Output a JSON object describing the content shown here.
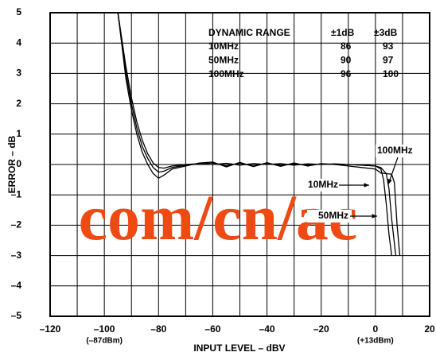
{
  "chart_data": {
    "type": "line",
    "xlabel": "INPUT LEVEL – dBV",
    "ylabel": "ERROR – dB",
    "xlim": [
      -120,
      20
    ],
    "ylim": [
      -5,
      5
    ],
    "xticks": [
      {
        "value": -120,
        "label": "–120"
      },
      {
        "value": -100,
        "label": "–100"
      },
      {
        "value": -80,
        "label": "–80"
      },
      {
        "value": -60,
        "label": "–60"
      },
      {
        "value": -40,
        "label": "–40"
      },
      {
        "value": -20,
        "label": "–20"
      },
      0,
      20
    ],
    "xtick_sublabels": [
      {
        "value": -100,
        "label": "(–87dBm)"
      },
      {
        "value": 0,
        "label": "(+13dBm)"
      }
    ],
    "xgrid": [
      -110,
      -90,
      -70,
      -50,
      -30,
      -10,
      10
    ],
    "yticks": [
      5,
      4,
      3,
      2,
      1,
      0,
      {
        "value": -1,
        "label": "–1"
      },
      {
        "value": -2,
        "label": "–2"
      },
      {
        "value": -3,
        "label": "–3"
      },
      {
        "value": -4,
        "label": "–4"
      },
      {
        "value": -5,
        "label": "–5"
      }
    ],
    "grid": true,
    "series": [
      {
        "name": "10MHz",
        "color": "#000000",
        "x": [
          -95,
          -92,
          -90,
          -88,
          -86,
          -84,
          -82,
          -80,
          -78,
          -75,
          -70,
          -65,
          -60,
          -55,
          -50,
          -45,
          -40,
          -35,
          -30,
          -25,
          -20,
          -15,
          -10,
          -5,
          0,
          2,
          3,
          4,
          5,
          6
        ],
        "values": [
          5,
          3.2,
          2.2,
          1.4,
          0.8,
          0.35,
          0.05,
          -0.1,
          -0.12,
          -0.05,
          0,
          0.03,
          0,
          0.04,
          -0.02,
          0.03,
          0,
          0.03,
          -0.02,
          0.02,
          0,
          0.02,
          0,
          -0.02,
          -0.05,
          -0.15,
          -0.5,
          -1.3,
          -2.3,
          -3.0
        ]
      },
      {
        "name": "50MHz",
        "color": "#000000",
        "x": [
          -95,
          -92,
          -90,
          -88,
          -86,
          -84,
          -82,
          -80,
          -78,
          -75,
          -70,
          -65,
          -60,
          -55,
          -50,
          -45,
          -40,
          -35,
          -30,
          -25,
          -20,
          -15,
          -10,
          -5,
          0,
          2,
          4,
          5,
          6,
          7,
          7.5
        ],
        "values": [
          5,
          3.0,
          2.0,
          1.2,
          0.6,
          0.2,
          -0.1,
          -0.25,
          -0.22,
          -0.1,
          -0.02,
          0.02,
          0.05,
          -0.05,
          0.05,
          -0.05,
          0.04,
          -0.04,
          0.03,
          -0.03,
          0.02,
          0,
          0,
          -0.02,
          -0.05,
          -0.1,
          -0.3,
          -0.8,
          -1.8,
          -2.6,
          -3.0
        ]
      },
      {
        "name": "100MHz",
        "color": "#000000",
        "x": [
          -95,
          -92,
          -90,
          -88,
          -86,
          -84,
          -82,
          -80,
          -78,
          -75,
          -70,
          -65,
          -60,
          -55,
          -50,
          -45,
          -40,
          -35,
          -30,
          -25,
          -20,
          -15,
          -10,
          -5,
          0,
          2,
          4,
          6,
          7,
          8,
          9
        ],
        "values": [
          5,
          2.8,
          1.8,
          1.0,
          0.4,
          0.0,
          -0.3,
          -0.45,
          -0.35,
          -0.15,
          -0.05,
          0.05,
          0.08,
          -0.08,
          0.07,
          -0.07,
          0.06,
          -0.06,
          0.05,
          -0.05,
          0.03,
          0,
          -0.05,
          -0.1,
          -0.15,
          -0.28,
          -0.3,
          -0.32,
          -0.6,
          -2.0,
          -3.0
        ]
      }
    ],
    "annotations": [
      {
        "text": "100MHz"
      },
      {
        "text": "10MHz"
      },
      {
        "text": "50MHz"
      }
    ],
    "table": {
      "header": [
        "DYNAMIC RANGE",
        "±1dB",
        "±3dB"
      ],
      "rows": [
        [
          "10MHz",
          "86",
          "93"
        ],
        [
          "50MHz",
          "90",
          "97"
        ],
        [
          "100MHz",
          "96",
          "100"
        ]
      ]
    },
    "watermark": "com/cn/ac"
  }
}
